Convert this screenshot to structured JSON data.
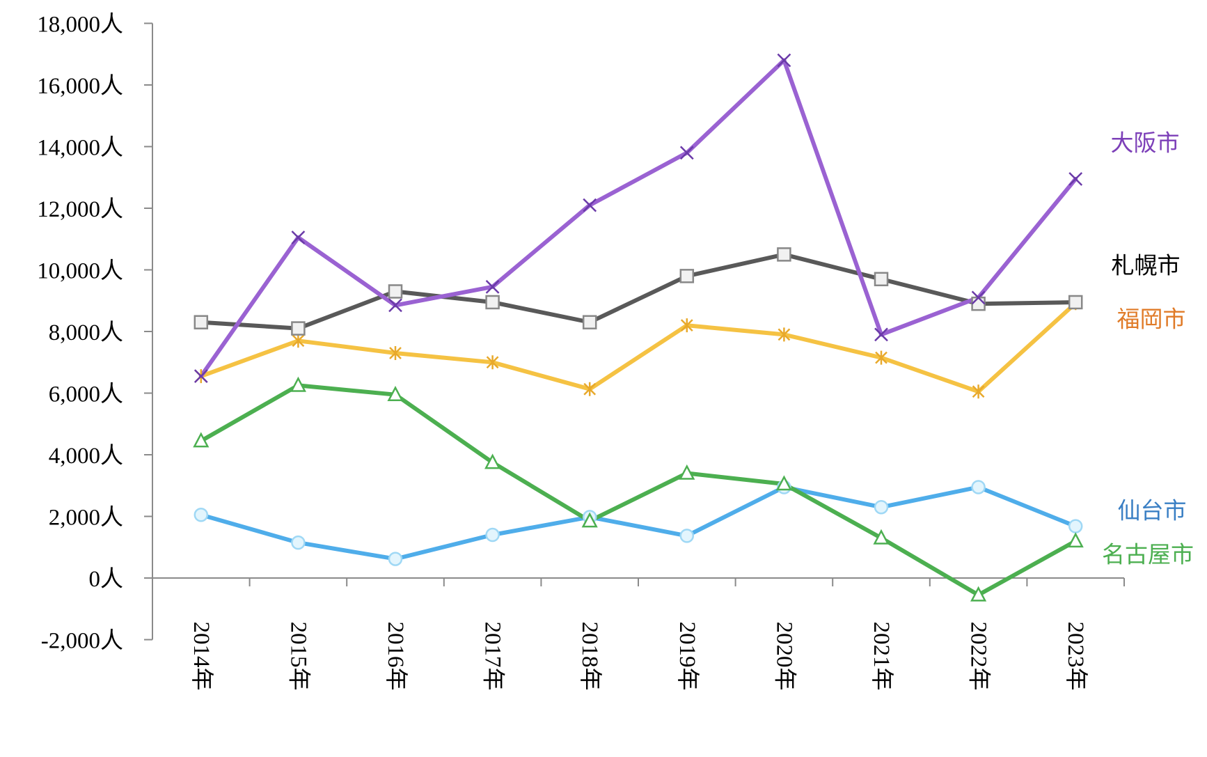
{
  "chart_data": {
    "type": "line",
    "title": "",
    "xlabel": "",
    "ylabel": "",
    "categories": [
      "2014年",
      "2015年",
      "2016年",
      "2017年",
      "2018年",
      "2019年",
      "2020年",
      "2021年",
      "2022年",
      "2023年"
    ],
    "ylim": [
      -2000,
      18000
    ],
    "yticks": [
      {
        "value": -2000,
        "label": "-2,000人",
        "color": "#e0302a"
      },
      {
        "value": 0,
        "label": "0人",
        "color": "#000000"
      },
      {
        "value": 2000,
        "label": "2,000人",
        "color": "#000000"
      },
      {
        "value": 4000,
        "label": "4,000人",
        "color": "#000000"
      },
      {
        "value": 6000,
        "label": "6,000人",
        "color": "#000000"
      },
      {
        "value": 8000,
        "label": "8,000人",
        "color": "#000000"
      },
      {
        "value": 10000,
        "label": "10,000人",
        "color": "#000000"
      },
      {
        "value": 12000,
        "label": "12,000人",
        "color": "#000000"
      },
      {
        "value": 14000,
        "label": "14,000人",
        "color": "#000000"
      },
      {
        "value": 16000,
        "label": "16,000人",
        "color": "#000000"
      },
      {
        "value": 18000,
        "label": "18,000人",
        "color": "#000000"
      }
    ],
    "grid": false,
    "legend": "end-of-line labels",
    "series": [
      {
        "name": "仙台市",
        "marker": "circle",
        "line_color": "#4fadea",
        "marker_color": "#9fd8f5",
        "label_color": "#3a7fc4",
        "values": [
          2050,
          1150,
          620,
          1400,
          1980,
          1370,
          2950,
          2300,
          2950,
          1680
        ]
      },
      {
        "name": "名古屋市",
        "marker": "triangle",
        "line_color": "#4caf50",
        "marker_color": "#4caf50",
        "label_color": "#4caf50",
        "values": [
          4450,
          6250,
          5950,
          3750,
          1850,
          3400,
          3050,
          1300,
          -550,
          1200
        ]
      },
      {
        "name": "福岡市",
        "marker": "star",
        "line_color": "#f5c243",
        "marker_color": "#e8a92c",
        "label_color": "#e07b28",
        "values": [
          6550,
          7700,
          7300,
          7000,
          6130,
          8200,
          7900,
          7150,
          6050,
          8920
        ]
      },
      {
        "name": "札幌市",
        "marker": "square",
        "line_color": "#595959",
        "marker_color": "#888888",
        "label_color": "#000000",
        "values": [
          8300,
          8100,
          9300,
          8950,
          8300,
          9800,
          10500,
          9700,
          8900,
          8950
        ]
      },
      {
        "name": "大阪市",
        "marker": "x",
        "line_color": "#9a62d2",
        "marker_color": "#6a3aa8",
        "label_color": "#7c3fb8",
        "values": [
          6550,
          11050,
          8850,
          9450,
          12100,
          13800,
          16800,
          7900,
          9100,
          12950
        ]
      }
    ]
  }
}
